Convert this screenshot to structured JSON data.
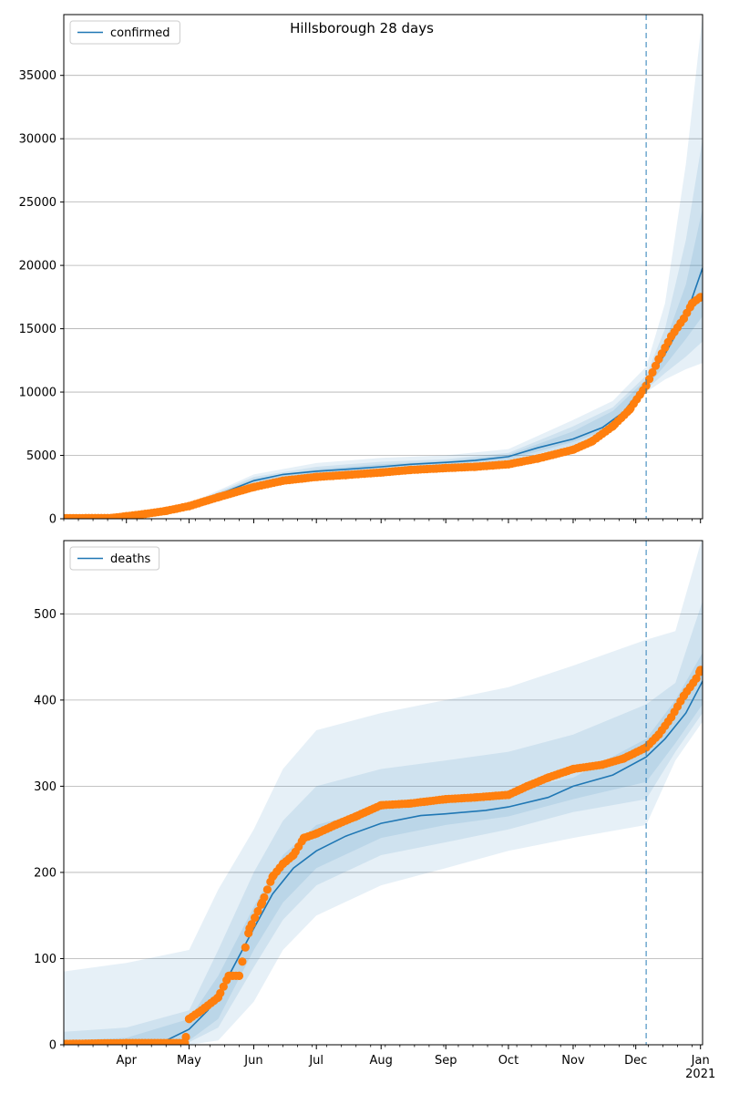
{
  "figure": {
    "title": "Hillsborough 28 days",
    "colors": {
      "model": "#1f77b4",
      "observed": "#ff7f0e",
      "grid": "#b0b0b0",
      "band": "#1f77b4"
    }
  },
  "chart_data": [
    {
      "type": "line",
      "title": "Hillsborough 28 days",
      "xlabel": "",
      "ylabel": "",
      "x_axis": {
        "type": "date",
        "range": [
          "2020-03-02",
          "2021-01-02"
        ],
        "tick_labels": [
          {
            "date": "2020-04-01",
            "label": ""
          },
          {
            "date": "2020-05-01",
            "label": ""
          },
          {
            "date": "2020-06-01",
            "label": ""
          },
          {
            "date": "2020-07-01",
            "label": ""
          },
          {
            "date": "2020-08-01",
            "label": ""
          },
          {
            "date": "2020-09-01",
            "label": ""
          },
          {
            "date": "2020-10-01",
            "label": ""
          },
          {
            "date": "2020-11-01",
            "label": ""
          },
          {
            "date": "2020-12-01",
            "label": ""
          },
          {
            "date": "2021-01-01",
            "label": ""
          }
        ]
      },
      "ylim": [
        0,
        39800
      ],
      "y_ticks": [
        0,
        5000,
        10000,
        15000,
        20000,
        25000,
        30000,
        35000
      ],
      "grid": "horizontal",
      "legend": {
        "placement": "top-left",
        "entries": [
          "confirmed"
        ]
      },
      "forecast_start": "2020-12-06",
      "series": [
        {
          "name": "confirmed",
          "kind": "model line",
          "x": [
            "2020-03-02",
            "2020-03-20",
            "2020-04-01",
            "2020-04-15",
            "2020-05-01",
            "2020-05-15",
            "2020-06-01",
            "2020-06-15",
            "2020-07-01",
            "2020-07-15",
            "2020-08-01",
            "2020-08-15",
            "2020-09-01",
            "2020-09-15",
            "2020-10-01",
            "2020-10-15",
            "2020-11-01",
            "2020-11-15",
            "2020-11-25",
            "2020-12-06",
            "2020-12-15",
            "2020-12-25",
            "2021-01-02"
          ],
          "y": [
            0,
            50,
            150,
            450,
            1050,
            1900,
            3000,
            3500,
            3750,
            3900,
            4100,
            4300,
            4450,
            4600,
            4900,
            5600,
            6300,
            7200,
            8400,
            10700,
            13000,
            16000,
            19800
          ]
        },
        {
          "name": "",
          "kind": "observed points",
          "x": [
            "2020-03-02",
            "2020-03-25",
            "2020-04-01",
            "2020-04-10",
            "2020-04-20",
            "2020-05-01",
            "2020-05-15",
            "2020-06-01",
            "2020-06-15",
            "2020-07-01",
            "2020-07-15",
            "2020-08-01",
            "2020-08-15",
            "2020-09-01",
            "2020-09-15",
            "2020-10-01",
            "2020-10-15",
            "2020-11-01",
            "2020-11-10",
            "2020-11-20",
            "2020-11-28",
            "2020-12-06",
            "2020-12-12",
            "2020-12-18",
            "2020-12-24",
            "2020-12-28",
            "2021-01-01"
          ],
          "y": [
            50,
            60,
            200,
            380,
            620,
            1000,
            1700,
            2500,
            3000,
            3300,
            3450,
            3650,
            3850,
            4000,
            4100,
            4300,
            4750,
            5450,
            6100,
            7300,
            8600,
            10500,
            12600,
            14400,
            15800,
            17000,
            17500
          ]
        }
      ],
      "bands": [
        {
          "x": [
            "2020-03-02",
            "2020-04-01",
            "2020-05-01",
            "2020-06-01",
            "2020-07-01",
            "2020-08-01",
            "2020-09-01",
            "2020-10-01",
            "2020-11-01",
            "2020-11-20",
            "2020-12-06",
            "2020-12-15",
            "2020-12-25",
            "2021-01-02"
          ],
          "lower": [
            0,
            120,
            950,
            2700,
            3300,
            3550,
            3900,
            4300,
            5400,
            6900,
            10000,
            11000,
            11800,
            12300
          ],
          "upper": [
            0,
            200,
            1200,
            3500,
            4400,
            4800,
            5000,
            5500,
            7800,
            9300,
            12000,
            17000,
            28000,
            39800
          ]
        },
        {
          "x": [
            "2020-03-02",
            "2020-04-01",
            "2020-05-01",
            "2020-06-01",
            "2020-07-01",
            "2020-08-01",
            "2020-09-01",
            "2020-10-01",
            "2020-11-01",
            "2020-11-20",
            "2020-12-06",
            "2020-12-15",
            "2020-12-25",
            "2021-01-02"
          ],
          "lower": [
            0,
            130,
            1000,
            2800,
            3400,
            3750,
            4100,
            4550,
            5800,
            7050,
            10200,
            11500,
            12800,
            14000
          ],
          "upper": [
            0,
            180,
            1150,
            3300,
            4100,
            4500,
            4700,
            5200,
            7300,
            8800,
            11300,
            15000,
            22000,
            30000
          ]
        },
        {
          "x": [
            "2020-03-02",
            "2020-04-01",
            "2020-05-01",
            "2020-06-01",
            "2020-07-01",
            "2020-08-01",
            "2020-09-01",
            "2020-10-01",
            "2020-11-01",
            "2020-11-20",
            "2020-12-06",
            "2020-12-15",
            "2020-12-25",
            "2021-01-02"
          ],
          "lower": [
            0,
            140,
            1030,
            2900,
            3550,
            3900,
            4250,
            4700,
            6050,
            7200,
            10400,
            12100,
            14200,
            16000
          ],
          "upper": [
            0,
            165,
            1100,
            3150,
            3900,
            4300,
            4550,
            5050,
            6900,
            8500,
            11000,
            13900,
            18500,
            24500
          ]
        }
      ]
    },
    {
      "type": "line",
      "title": "",
      "xlabel": "",
      "ylabel": "",
      "x_axis": {
        "type": "date",
        "range": [
          "2020-03-02",
          "2021-01-02"
        ],
        "tick_labels": [
          {
            "date": "2020-04-01",
            "label": "Apr"
          },
          {
            "date": "2020-05-01",
            "label": "May"
          },
          {
            "date": "2020-06-01",
            "label": "Jun"
          },
          {
            "date": "2020-07-01",
            "label": "Jul"
          },
          {
            "date": "2020-08-01",
            "label": "Aug"
          },
          {
            "date": "2020-09-01",
            "label": "Sep"
          },
          {
            "date": "2020-10-01",
            "label": "Oct"
          },
          {
            "date": "2020-11-01",
            "label": "Nov"
          },
          {
            "date": "2020-12-01",
            "label": "Dec"
          },
          {
            "date": "2021-01-01",
            "label": "Jan\n2021"
          }
        ]
      },
      "ylim": [
        0,
        585
      ],
      "y_ticks": [
        0,
        100,
        200,
        300,
        400,
        500
      ],
      "grid": "horizontal",
      "legend": {
        "placement": "top-left",
        "entries": [
          "deaths"
        ]
      },
      "forecast_start": "2020-12-06",
      "series": [
        {
          "name": "deaths",
          "kind": "model line",
          "x": [
            "2020-03-02",
            "2020-04-01",
            "2020-04-20",
            "2020-05-01",
            "2020-05-10",
            "2020-05-20",
            "2020-06-01",
            "2020-06-10",
            "2020-06-20",
            "2020-07-01",
            "2020-07-15",
            "2020-08-01",
            "2020-08-20",
            "2020-09-01",
            "2020-09-20",
            "2020-10-01",
            "2020-10-20",
            "2020-11-01",
            "2020-11-20",
            "2020-12-06",
            "2020-12-15",
            "2020-12-25",
            "2021-01-02"
          ],
          "y": [
            0,
            1,
            5,
            18,
            40,
            80,
            135,
            175,
            205,
            225,
            242,
            257,
            266,
            268,
            272,
            276,
            287,
            300,
            313,
            334,
            355,
            385,
            422
          ]
        },
        {
          "name": "",
          "kind": "observed points",
          "x": [
            "2020-03-02",
            "2020-04-01",
            "2020-04-29",
            "2020-05-01",
            "2020-05-07",
            "2020-05-15",
            "2020-05-20",
            "2020-05-25",
            "2020-05-30",
            "2020-06-05",
            "2020-06-10",
            "2020-06-15",
            "2020-06-20",
            "2020-06-25",
            "2020-07-01",
            "2020-07-10",
            "2020-07-20",
            "2020-08-01",
            "2020-08-15",
            "2020-09-01",
            "2020-09-15",
            "2020-10-01",
            "2020-10-10",
            "2020-10-20",
            "2020-11-01",
            "2020-11-15",
            "2020-11-25",
            "2020-12-06",
            "2020-12-12",
            "2020-12-18",
            "2020-12-24",
            "2020-12-30",
            "2021-01-01"
          ],
          "y": [
            1,
            2,
            2,
            30,
            40,
            55,
            80,
            80,
            135,
            165,
            195,
            210,
            220,
            240,
            245,
            255,
            265,
            278,
            280,
            285,
            287,
            290,
            300,
            310,
            320,
            325,
            332,
            345,
            360,
            380,
            405,
            425,
            435
          ]
        }
      ],
      "bands": [
        {
          "x": [
            "2020-03-02",
            "2020-04-01",
            "2020-05-01",
            "2020-05-15",
            "2020-06-01",
            "2020-06-15",
            "2020-07-01",
            "2020-08-01",
            "2020-09-01",
            "2020-10-01",
            "2020-11-01",
            "2020-12-06",
            "2020-12-20",
            "2021-01-02"
          ],
          "lower": [
            0,
            0,
            0,
            5,
            50,
            110,
            150,
            185,
            205,
            225,
            240,
            255,
            330,
            375
          ],
          "upper": [
            85,
            95,
            110,
            180,
            250,
            320,
            365,
            385,
            400,
            415,
            440,
            470,
            480,
            590
          ]
        },
        {
          "x": [
            "2020-03-02",
            "2020-04-01",
            "2020-05-01",
            "2020-05-15",
            "2020-06-01",
            "2020-06-15",
            "2020-07-01",
            "2020-08-01",
            "2020-09-01",
            "2020-10-01",
            "2020-11-01",
            "2020-12-06",
            "2020-12-20",
            "2021-01-02"
          ],
          "lower": [
            0,
            0,
            3,
            20,
            90,
            145,
            185,
            220,
            235,
            250,
            270,
            285,
            340,
            385
          ],
          "upper": [
            15,
            20,
            40,
            110,
            200,
            260,
            300,
            320,
            330,
            340,
            360,
            395,
            420,
            515
          ]
        },
        {
          "x": [
            "2020-03-02",
            "2020-04-01",
            "2020-05-01",
            "2020-05-15",
            "2020-06-01",
            "2020-06-15",
            "2020-07-01",
            "2020-08-01",
            "2020-09-01",
            "2020-10-01",
            "2020-11-01",
            "2020-12-06",
            "2020-12-20",
            "2021-01-02"
          ],
          "lower": [
            0,
            0,
            5,
            30,
            110,
            165,
            205,
            240,
            255,
            265,
            285,
            305,
            350,
            395
          ],
          "upper": [
            5,
            8,
            30,
            80,
            160,
            220,
            255,
            275,
            285,
            295,
            310,
            355,
            400,
            455
          ]
        }
      ]
    }
  ]
}
